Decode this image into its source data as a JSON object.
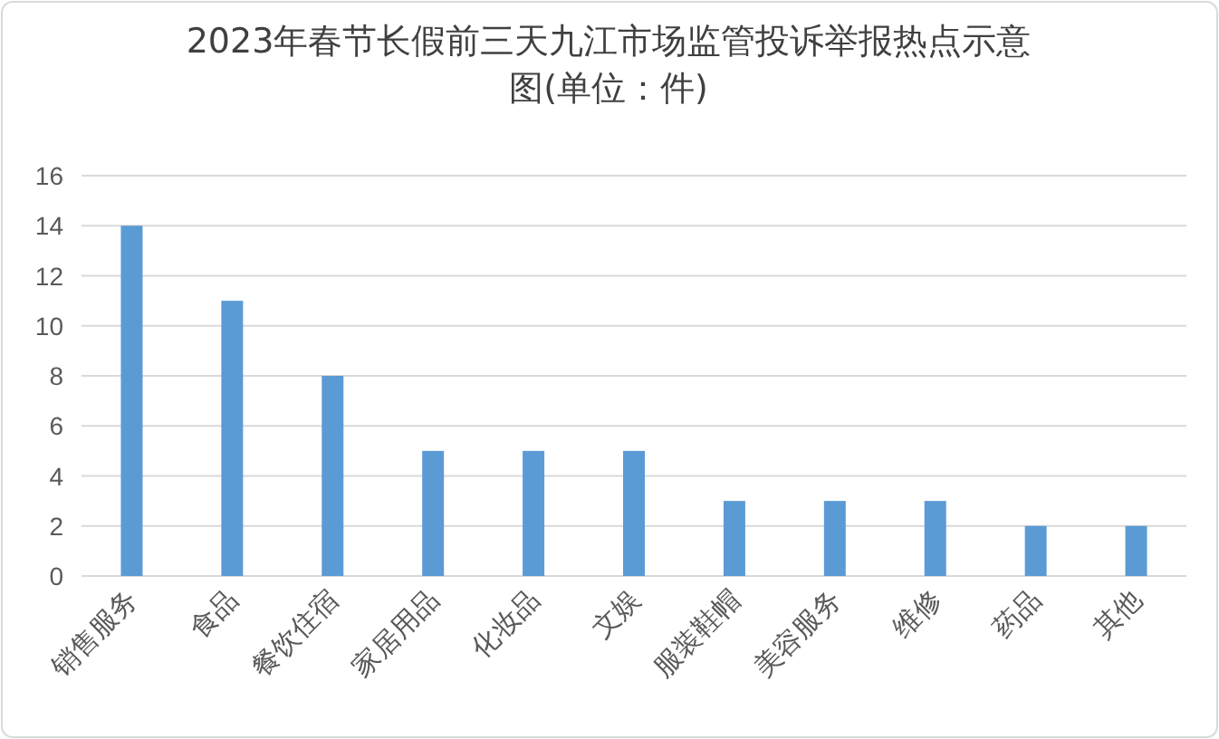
{
  "chart_data": {
    "type": "bar",
    "title": "2023年春节长假前三天九江市场监管投诉举报热点示意图(单位：件)",
    "categories": [
      "销售服务",
      "食品",
      "餐饮住宿",
      "家居用品",
      "化妆品",
      "文娱",
      "服装鞋帽",
      "美容服务",
      "维修",
      "药品",
      "其他"
    ],
    "values": [
      14,
      11,
      8,
      5,
      5,
      5,
      3,
      3,
      3,
      2,
      2
    ],
    "color": "#5b9bd5",
    "ylim": [
      0,
      16
    ],
    "yticks": [
      0,
      2,
      4,
      6,
      8,
      10,
      12,
      14,
      16
    ],
    "grid": "y"
  }
}
